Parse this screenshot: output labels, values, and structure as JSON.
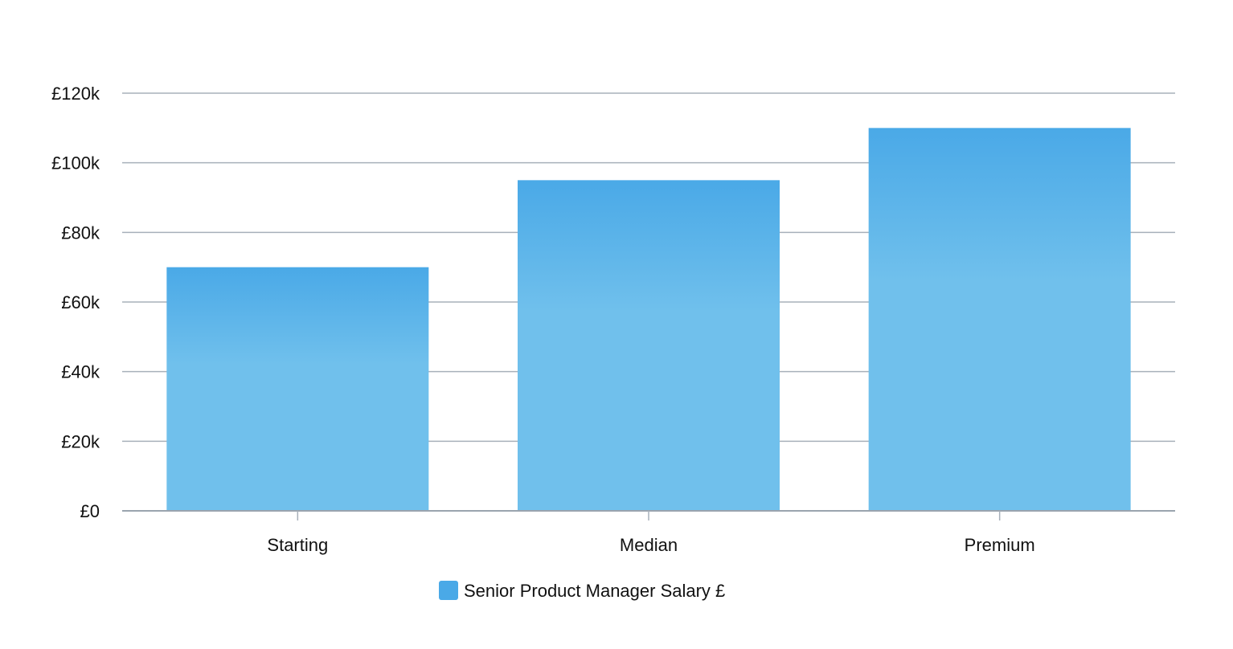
{
  "chart_data": {
    "type": "bar",
    "categories": [
      "Starting",
      "Median",
      "Premium"
    ],
    "series": [
      {
        "name": "Senior Product Manager Salary £",
        "values": [
          70000,
          95000,
          110000
        ]
      }
    ],
    "ylim": [
      0,
      120000
    ],
    "y_ticks": [
      {
        "value": 0,
        "label": "£0"
      },
      {
        "value": 20000,
        "label": "£20k"
      },
      {
        "value": 40000,
        "label": "£40k"
      },
      {
        "value": 60000,
        "label": "£60k"
      },
      {
        "value": 80000,
        "label": "£80k"
      },
      {
        "value": 100000,
        "label": "£100k"
      },
      {
        "value": 120000,
        "label": "£120k"
      }
    ],
    "grid": true,
    "legend_position": "bottom-center",
    "colors": {
      "bar_top": "#4aa9e7",
      "bar_bottom": "#70c0ec",
      "legend_swatch": "#4aa9e7",
      "gridline": "#a7b0ba",
      "axis": "#9aa4ae"
    }
  }
}
